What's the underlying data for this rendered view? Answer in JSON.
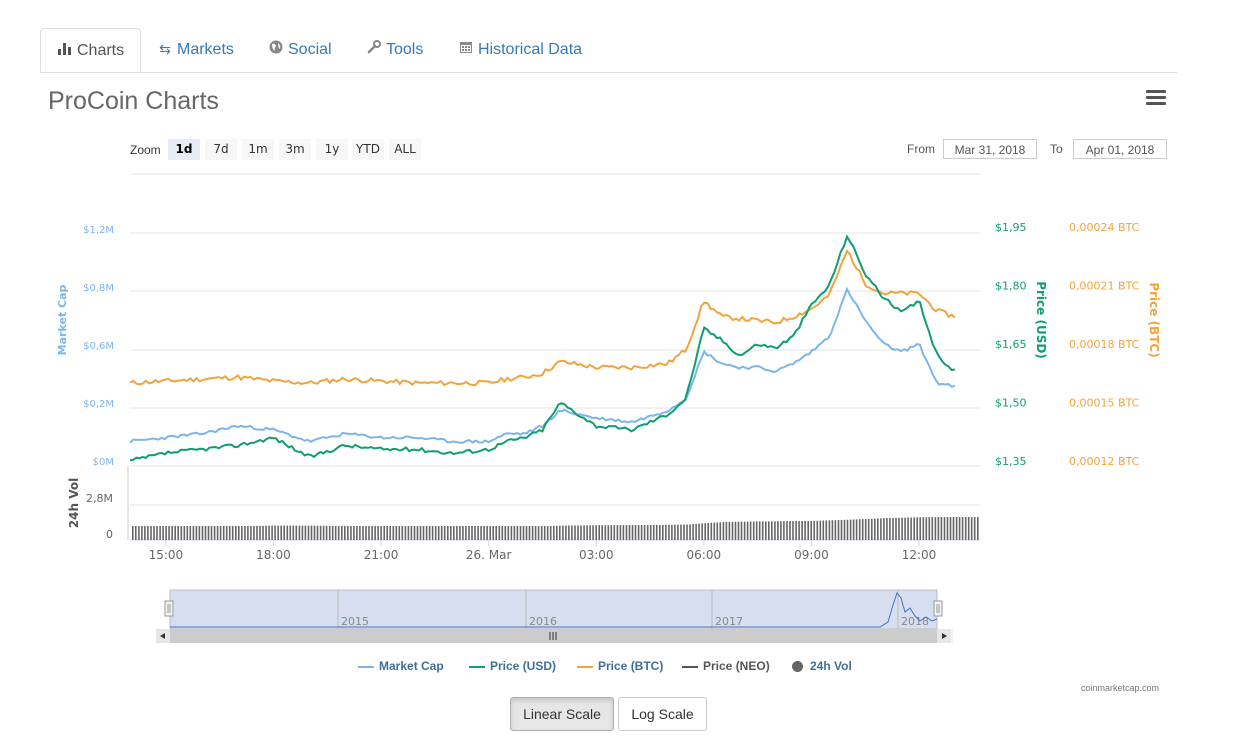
{
  "tabs": [
    {
      "label": "Charts",
      "icon": "bar-chart-icon",
      "active": true
    },
    {
      "label": "Markets",
      "icon": "exchange-arrows-icon"
    },
    {
      "label": "Social",
      "icon": "globe-icon"
    },
    {
      "label": "Tools",
      "icon": "wrench-icon"
    },
    {
      "label": "Historical Data",
      "icon": "calendar-icon"
    }
  ],
  "title": "ProCoin Charts",
  "zoom": {
    "label": "Zoom",
    "options": [
      "1d",
      "7d",
      "1m",
      "3m",
      "1y",
      "YTD",
      "ALL"
    ],
    "selected": "1d"
  },
  "range": {
    "from_label": "From",
    "from": "Mar 31, 2018",
    "to_label": "To",
    "to": "Apr 01, 2018"
  },
  "scale_buttons": {
    "linear": "Linear Scale",
    "log": "Log Scale",
    "active": "linear"
  },
  "credit": "coinmarketcap.com",
  "colors": {
    "market_cap": "#7cb5ec",
    "price_usd": "#0f9d72",
    "price_btc": "#f0a43e",
    "price_neo": "#555555",
    "volume": "#666666"
  },
  "chart_data": {
    "type": "line",
    "axes": {
      "market_cap": {
        "title": "Market Cap",
        "ticks": [
          "$0M",
          "$0,2M",
          "$0,6M",
          "$0,8M",
          "$1,2M"
        ]
      },
      "price_usd": {
        "title": "Price (USD)",
        "ticks": [
          "$1,35",
          "$1,50",
          "$1,65",
          "$1,80",
          "$1,95"
        ],
        "range": [
          1.35,
          1.95
        ]
      },
      "price_btc": {
        "title": "Price (BTC)",
        "ticks": [
          "0,00012 BTC",
          "0,00015 BTC",
          "0,00018 BTC",
          "0,00021 BTC",
          "0,00024 BTC"
        ],
        "range": [
          0.00012,
          0.00024
        ]
      },
      "volume": {
        "title": "24h Vol",
        "ticks": [
          "0",
          "2,8M"
        ]
      }
    },
    "x_ticks": [
      "15:00",
      "18:00",
      "21:00",
      "26. Mar",
      "03:00",
      "06:00",
      "09:00",
      "12:00"
    ],
    "x_hours": [
      0,
      1,
      2,
      3,
      4,
      5,
      6,
      7,
      8,
      9,
      10,
      10.5,
      11,
      11.5,
      12,
      13,
      14,
      15,
      15.5,
      16,
      16.5,
      17,
      17.5,
      18,
      18.5,
      19,
      19.5,
      20,
      20.5,
      21,
      21.5,
      22,
      22.5,
      23
    ],
    "x_hours_origin": "14:00",
    "series": [
      {
        "name": "Price (USD)",
        "axis": "price_usd",
        "values": [
          1.35,
          1.37,
          1.38,
          1.39,
          1.41,
          1.36,
          1.39,
          1.38,
          1.38,
          1.37,
          1.38,
          1.4,
          1.41,
          1.43,
          1.5,
          1.44,
          1.43,
          1.47,
          1.51,
          1.69,
          1.66,
          1.62,
          1.65,
          1.64,
          1.67,
          1.75,
          1.8,
          1.93,
          1.83,
          1.77,
          1.73,
          1.76,
          1.62,
          1.58
        ]
      },
      {
        "name": "Market Cap",
        "axis": "price_usd",
        "values": [
          1.4,
          1.41,
          1.42,
          1.44,
          1.43,
          1.4,
          1.42,
          1.41,
          1.41,
          1.4,
          1.4,
          1.42,
          1.42,
          1.44,
          1.48,
          1.46,
          1.45,
          1.48,
          1.51,
          1.63,
          1.6,
          1.59,
          1.59,
          1.58,
          1.6,
          1.63,
          1.67,
          1.79,
          1.71,
          1.65,
          1.63,
          1.65,
          1.55,
          1.54
        ]
      },
      {
        "name": "Price (BTC)",
        "axis": "price_btc",
        "values": [
          0.00016,
          0.000161,
          0.000162,
          0.000163,
          0.000161,
          0.00016,
          0.000162,
          0.000161,
          0.00016,
          0.00016,
          0.00016,
          0.000162,
          0.000163,
          0.000165,
          0.000171,
          0.000168,
          0.000168,
          0.00017,
          0.000177,
          0.000202,
          0.000194,
          0.000193,
          0.000192,
          0.000191,
          0.000194,
          0.000198,
          0.000205,
          0.000228,
          0.000211,
          0.000206,
          0.000206,
          0.000206,
          0.000197,
          0.000194
        ]
      },
      {
        "name": "Price (NEO)",
        "values": []
      }
    ],
    "volume": {
      "name": "24h Vol",
      "values_relative": [
        0.7,
        0.7,
        0.7,
        0.7,
        0.72,
        0.72,
        0.7,
        0.7,
        0.7,
        0.7,
        0.7,
        0.7,
        0.7,
        0.7,
        0.72,
        0.74,
        0.75,
        0.76,
        0.78,
        0.85,
        0.9,
        0.92,
        0.93,
        0.94,
        0.95,
        0.96,
        0.99,
        1.02,
        1.06,
        1.1,
        1.12,
        1.14,
        1.15,
        1.15
      ]
    },
    "navigator": {
      "labels": [
        "2015",
        "2016",
        "2017",
        "2018"
      ]
    },
    "legend": [
      "Market Cap",
      "Price (USD)",
      "Price (BTC)",
      "Price (NEO)",
      "24h Vol"
    ]
  }
}
